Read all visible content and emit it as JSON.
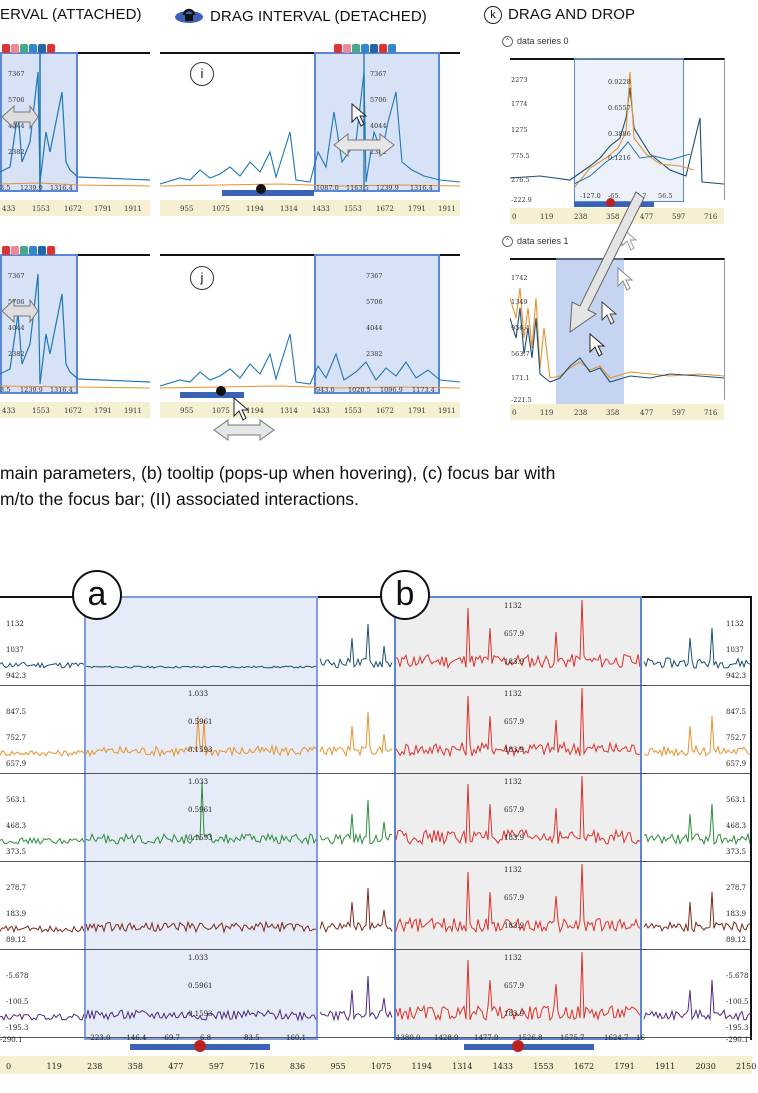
{
  "headers": {
    "attached": "ERVAL (ATTACHED)",
    "detached": "DRAG INTERVAL (DETACHED)",
    "k_letter": "k",
    "k_title": "DRAG AND DROP"
  },
  "panel_markers": {
    "i": "i",
    "j": "j",
    "a": "a",
    "b": "b"
  },
  "caption": {
    "line1": "main parameters, (b) tooltip (pops-up when hovering), (c) focus bar with",
    "line2": "m/to the focus bar; (II) associated interactions."
  },
  "left_panel_y": [
    "7367",
    "5706",
    "4044",
    "2382"
  ],
  "left_panel_x": [
    "3.5",
    "1239.9",
    "1316.4"
  ],
  "top_axis": [
    "955",
    "1075",
    "1194",
    "1314",
    "1433",
    "1553",
    "1672",
    "1791",
    "1911"
  ],
  "top_axis_partial": [
    "433",
    "1553",
    "1672",
    "1791",
    "1911"
  ],
  "i_focus_x": [
    "1087.0",
    "1163.5",
    "1239.9",
    "1316.4"
  ],
  "j_focus_x": [
    "943.0",
    "1020.5",
    "1096.9",
    "1173.4"
  ],
  "k": {
    "series0": "data series 0",
    "series1": "data series 1",
    "s0_y": [
      "2273",
      "1774",
      "1275",
      "775.5",
      "276.5",
      "-222.9"
    ],
    "s0_inner": [
      "0.9228",
      "0.6557",
      "0.3886",
      "0.1216"
    ],
    "s0_innerx": [
      "-127.0",
      "-65.",
      "4.7",
      "56.5"
    ],
    "s1_y": [
      "1742",
      "1349",
      "956.4",
      "563.7",
      "171.1",
      "-221.5"
    ],
    "axis": [
      "0",
      "119",
      "238",
      "358",
      "477",
      "597",
      "716"
    ]
  },
  "bottom_rows": [
    {
      "left": [
        "1132",
        "1037",
        "942.3"
      ],
      "right": [
        "1132",
        "1037",
        "942.3"
      ],
      "a_vals": [],
      "b_vals": [
        "1132",
        "657.9",
        "183.9"
      ],
      "color": "#1b4f72"
    },
    {
      "left": [
        "847.5",
        "752.7",
        "657.9"
      ],
      "right": [
        "847.5",
        "752.7",
        "657.9"
      ],
      "a_vals": [
        "1.033",
        "0.5961",
        "0.1593"
      ],
      "b_vals": [
        "1132",
        "657.9",
        "183.9"
      ],
      "color": "#e8922f"
    },
    {
      "left": [
        "563.1",
        "468.3",
        "373.5"
      ],
      "right": [
        "563.1",
        "468.3",
        "373.5"
      ],
      "a_vals": [
        "1.033",
        "0.5961",
        "0.1593"
      ],
      "b_vals": [
        "1132",
        "657.9",
        "183.9"
      ],
      "color": "#2e8b3a"
    },
    {
      "left": [
        "278.7",
        "183.9",
        "89.12"
      ],
      "right": [
        "278.7",
        "183.9",
        "89.12"
      ],
      "a_vals": [],
      "b_vals": [
        "1132",
        "657.9",
        "183.9"
      ],
      "color": "#7a2a1c"
    },
    {
      "left": [
        "-5.678",
        "-100.5",
        "-195.3"
      ],
      "right": [
        "-5.678",
        "-100.5",
        "-195.3"
      ],
      "a_vals": [
        "1.033",
        "0.5961",
        "0.1593"
      ],
      "b_vals": [
        "1132",
        "657.9",
        "183.9"
      ],
      "color": "#4b2a82"
    }
  ],
  "bottom_focus_a_x": [
    "-223.0",
    "-146.4",
    "-69.7",
    "6.8",
    "83.5",
    "160.1"
  ],
  "bottom_focus_b_x": [
    "1380.0",
    "1428.9",
    "1477.9",
    "1526.8",
    "1575.7",
    "1624.7",
    "16"
  ],
  "bottom_min": "-290.1",
  "bottom_axis": [
    "0",
    "119",
    "238",
    "358",
    "477",
    "597",
    "716",
    "836",
    "955",
    "1075",
    "1194",
    "1314",
    "1433",
    "1553",
    "1672",
    "1791",
    "1911",
    "2030",
    "2150"
  ],
  "colors": {
    "focus_fill": "#a8beeb",
    "focus_border": "#5a86d6",
    "trace_blue": "#1f77b4",
    "trace_orange": "#e8922f",
    "trace_red": "#e0302a",
    "axis_strip": "#f6f0d2"
  }
}
